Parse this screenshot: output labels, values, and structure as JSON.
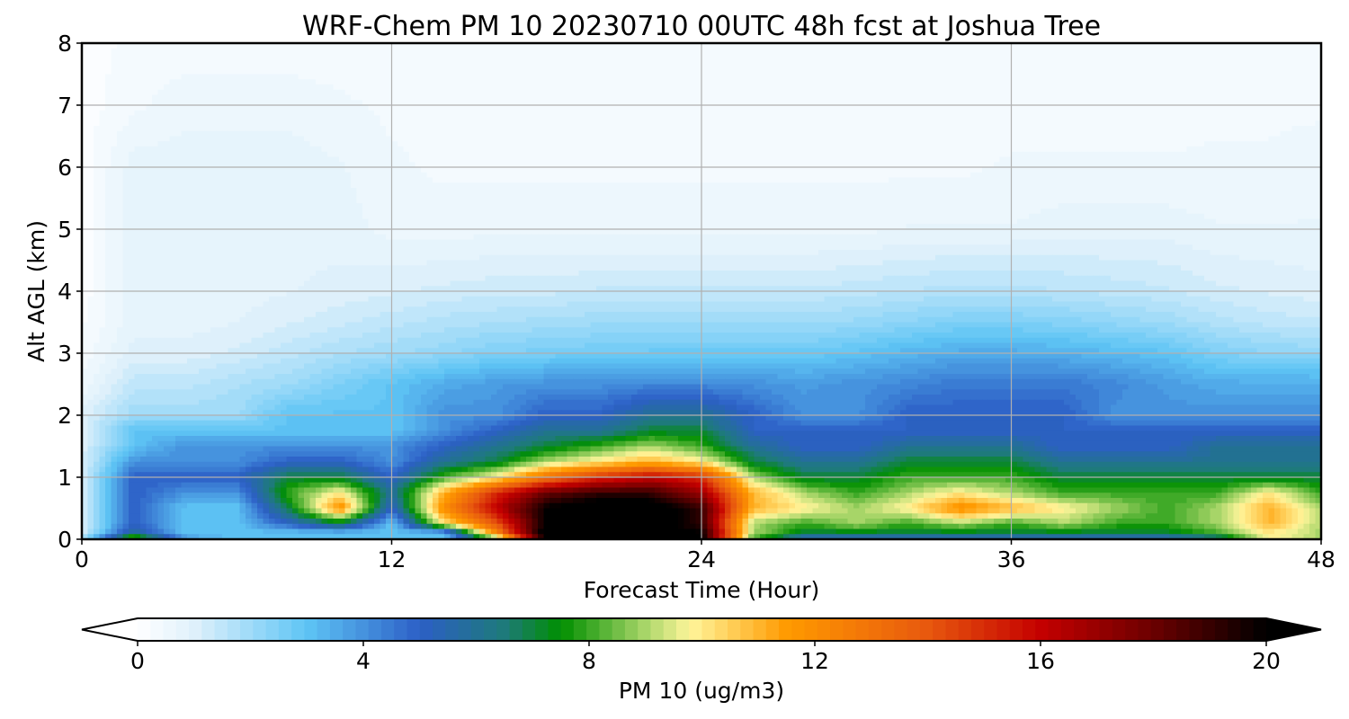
{
  "chart_data": {
    "type": "heatmap",
    "subtype": "filled-contour time-height cross section",
    "title": "WRF-Chem PM 10  20230710 00UTC 48h fcst at Joshua Tree",
    "xlabel": "Forecast Time (Hour)",
    "ylabel": "Alt AGL (km)",
    "xlim": [
      0,
      48
    ],
    "ylim": [
      0,
      8
    ],
    "x_ticks": [
      "0",
      "12",
      "24",
      "36",
      "48"
    ],
    "y_ticks": [
      "0",
      "1",
      "2",
      "3",
      "4",
      "5",
      "6",
      "7",
      "8"
    ],
    "grid": true,
    "x_hours": [
      0,
      2,
      4,
      6,
      8,
      10,
      12,
      14,
      16,
      18,
      20,
      22,
      24,
      26,
      28,
      30,
      32,
      34,
      36,
      38,
      40,
      42,
      44,
      46,
      48
    ],
    "z_km": [
      0,
      0.1,
      0.25,
      0.5,
      0.75,
      1.0,
      1.25,
      1.5,
      1.75,
      2.0,
      2.5,
      3.0,
      3.5,
      4.0,
      5.0,
      6.0,
      7.0,
      8.0
    ],
    "pm10_ugm3": [
      [
        2,
        9,
        4,
        3,
        3,
        3,
        3,
        3,
        8,
        20,
        21,
        21,
        20,
        8,
        5,
        5,
        5,
        5,
        5,
        5,
        5,
        5,
        6,
        10,
        9
      ],
      [
        1,
        6,
        3,
        3,
        3,
        3,
        3,
        3,
        12,
        21,
        21,
        21,
        20,
        9,
        7,
        7,
        7,
        7,
        7,
        7,
        7,
        7,
        8,
        10,
        9
      ],
      [
        1,
        5,
        3,
        3,
        5,
        7,
        3,
        10,
        14,
        20,
        21,
        21,
        19,
        9,
        8,
        9,
        8,
        9,
        8,
        9,
        8,
        8,
        9,
        11,
        9
      ],
      [
        1,
        5,
        3,
        3,
        7,
        12,
        5,
        12,
        16,
        20,
        21,
        21,
        19,
        11,
        10,
        9,
        10,
        12,
        11,
        10,
        9,
        8,
        9,
        11,
        9
      ],
      [
        1,
        5,
        4,
        4,
        8,
        10,
        6,
        11,
        15,
        18,
        19,
        19,
        17,
        11,
        9,
        8,
        9,
        10,
        9,
        8,
        8,
        8,
        8,
        10,
        8
      ],
      [
        1,
        5,
        5,
        5,
        7,
        7,
        5,
        8,
        10,
        13,
        15,
        16,
        15,
        9,
        7,
        7,
        8,
        8,
        8,
        7,
        7,
        7,
        7,
        7,
        7
      ],
      [
        1,
        4,
        4,
        4,
        5,
        5,
        4,
        6,
        7,
        9,
        10,
        11,
        10,
        7,
        6,
        6,
        7,
        7,
        7,
        6,
        6,
        6,
        6,
        6,
        6
      ],
      [
        1,
        3,
        4,
        4,
        4,
        4,
        4,
        5,
        6,
        7,
        8,
        9,
        8,
        6,
        5,
        5,
        6,
        6,
        6,
        5,
        5,
        5,
        6,
        6,
        6
      ],
      [
        1,
        3,
        3,
        3,
        3,
        3,
        3,
        4,
        5,
        6,
        6,
        7,
        7,
        5,
        5,
        5,
        5,
        5,
        5,
        5,
        5,
        5,
        5,
        5,
        5
      ],
      [
        1,
        2,
        2,
        2,
        3,
        3,
        3,
        4,
        4,
        5,
        5,
        6,
        6,
        5,
        4,
        4,
        5,
        5,
        5,
        5,
        4,
        4,
        4,
        4,
        4
      ],
      [
        0.5,
        1.5,
        1.5,
        1.8,
        2,
        2.5,
        3,
        3.5,
        3.8,
        4,
        4,
        4.2,
        4.2,
        4,
        3.8,
        4,
        4.2,
        4.5,
        4.5,
        4.5,
        4.2,
        3.8,
        3.5,
        3.5,
        3.5
      ],
      [
        0.3,
        1,
        1,
        1.2,
        1.5,
        1.8,
        2,
        2.2,
        2.5,
        2.6,
        2.7,
        2.8,
        2.8,
        2.8,
        2.8,
        3,
        3.3,
        3.5,
        3.5,
        3.4,
        3.2,
        3,
        2.5,
        2.3,
        2.2
      ],
      [
        0.2,
        0.8,
        0.8,
        0.9,
        1.1,
        1.3,
        1.5,
        1.7,
        1.8,
        1.9,
        2,
        2,
        2,
        2,
        2,
        2.1,
        2.3,
        2.5,
        2.5,
        2.4,
        2.2,
        2,
        1.7,
        1.5,
        1.4
      ],
      [
        0.1,
        0.8,
        0.8,
        0.8,
        0.9,
        1,
        1.1,
        1.2,
        1.3,
        1.3,
        1.4,
        1.4,
        1.4,
        1.4,
        1.4,
        1.5,
        1.6,
        1.7,
        1.7,
        1.6,
        1.5,
        1.4,
        1.2,
        1.1,
        1
      ],
      [
        0.1,
        0.8,
        0.8,
        0.8,
        0.8,
        0.8,
        0.6,
        0.6,
        0.6,
        0.6,
        0.6,
        0.6,
        0.6,
        0.6,
        0.6,
        0.6,
        0.7,
        0.7,
        0.7,
        0.8,
        0.8,
        0.8,
        0.7,
        0.7,
        0.7
      ],
      [
        0.1,
        0.8,
        0.8,
        0.8,
        0.8,
        0.7,
        0.5,
        0.4,
        0.4,
        0.4,
        0.4,
        0.4,
        0.4,
        0.4,
        0.4,
        0.4,
        0.4,
        0.4,
        0.5,
        0.5,
        0.5,
        0.5,
        0.5,
        0.5,
        0.6
      ],
      [
        0.1,
        0.4,
        0.6,
        0.6,
        0.6,
        0.5,
        0.4,
        0.4,
        0.3,
        0.3,
        0.3,
        0.3,
        0.3,
        0.3,
        0.3,
        0.3,
        0.3,
        0.3,
        0.3,
        0.3,
        0.3,
        0.3,
        0.4,
        0.4,
        0.4
      ],
      [
        0.1,
        0.3,
        0.3,
        0.3,
        0.3,
        0.3,
        0.3,
        0.3,
        0.3,
        0.3,
        0.3,
        0.3,
        0.3,
        0.3,
        0.3,
        0.3,
        0.3,
        0.3,
        0.3,
        0.3,
        0.3,
        0.3,
        0.3,
        0.3,
        0.3
      ]
    ],
    "colorbar": {
      "label": "PM 10  (ug/m3)",
      "min": 0,
      "max": 20,
      "ticks": [
        "0",
        "4",
        "8",
        "12",
        "16",
        "20"
      ],
      "orientation": "horizontal",
      "extend": "both",
      "levels": 88,
      "stops": [
        {
          "value": 0,
          "color": "#ffffff"
        },
        {
          "value": 1,
          "color": "#dff1fb"
        },
        {
          "value": 3,
          "color": "#5ec4f5"
        },
        {
          "value": 5,
          "color": "#2c5fc6"
        },
        {
          "value": 6.5,
          "color": "#1e7a7a"
        },
        {
          "value": 7.5,
          "color": "#008f00"
        },
        {
          "value": 9,
          "color": "#aad66a"
        },
        {
          "value": 9.8,
          "color": "#fff59a"
        },
        {
          "value": 11.5,
          "color": "#ff9a00"
        },
        {
          "value": 14,
          "color": "#e8580e"
        },
        {
          "value": 16,
          "color": "#c40000"
        },
        {
          "value": 18,
          "color": "#6b0000"
        },
        {
          "value": 20,
          "color": "#000000"
        }
      ],
      "under_color": "#ffffff",
      "over_color": "#000000"
    }
  }
}
